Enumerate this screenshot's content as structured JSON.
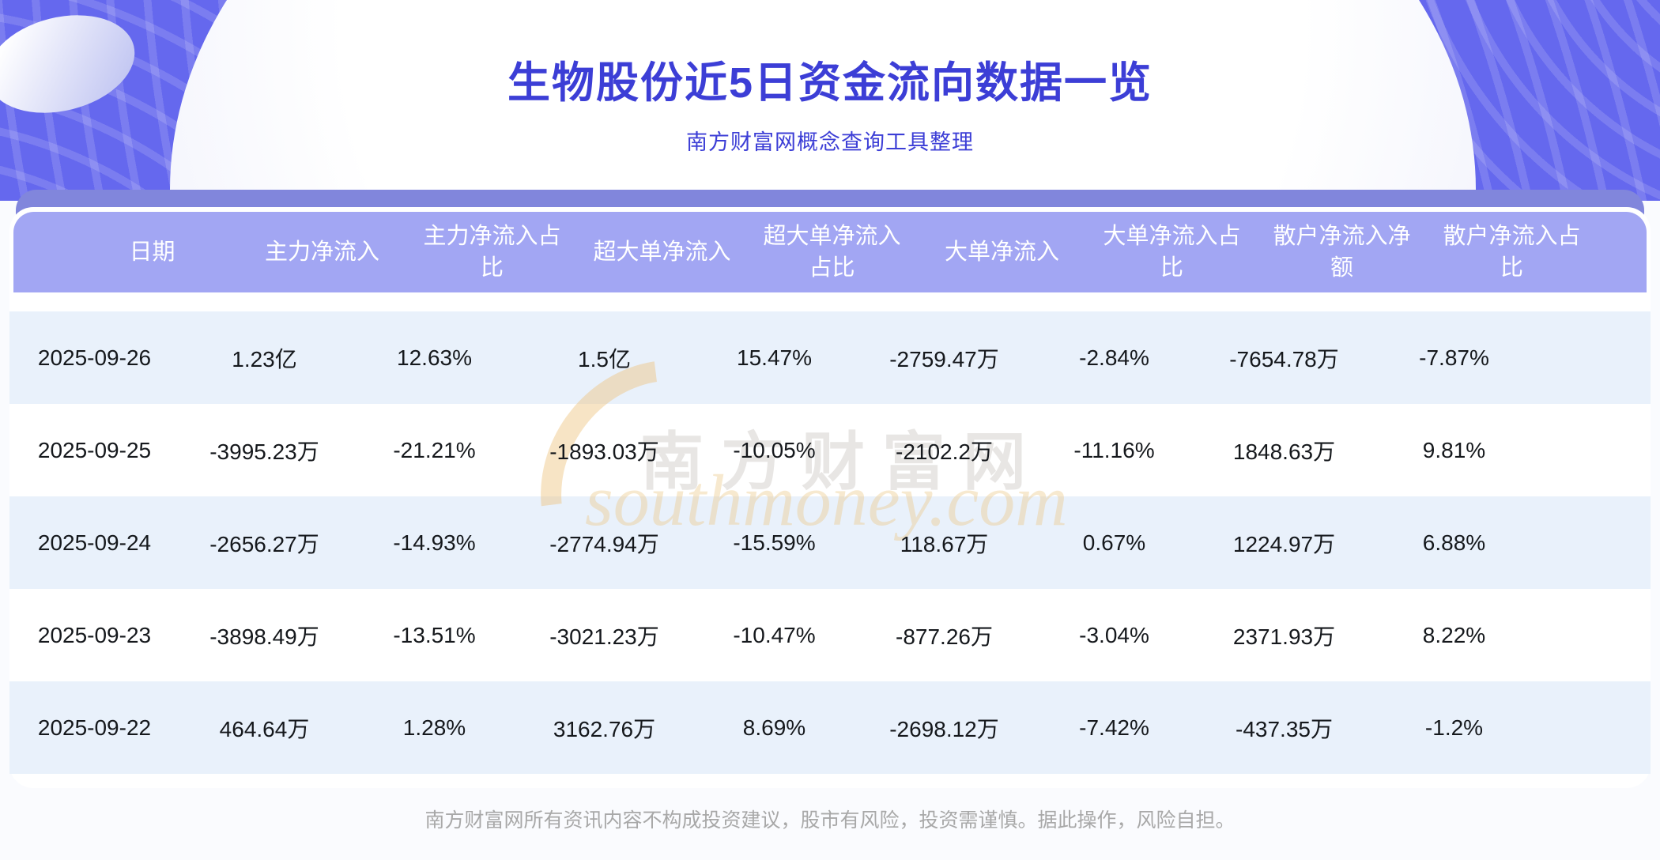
{
  "title": "生物股份近5日资金流向数据一览",
  "subtitle": "南方财富网概念查询工具整理",
  "watermark": {
    "cn": "南方财富网",
    "en": "southmoney.com"
  },
  "footer": "南方财富网所有资讯内容不构成投资建议，股市有风险，投资需谨慎。据此操作，风险自担。",
  "colors": {
    "banner": "#6568ee",
    "band": "#8186dc",
    "header_bg": "#a2a6f3",
    "stripe": "#e9f1fb",
    "title_text": "#3c3ed6",
    "header_text": "#ffffff",
    "body_text": "#15181c",
    "watermark_tan": "#ebc786"
  },
  "chart_data": {
    "type": "table",
    "title": "生物股份近5日资金流向数据一览",
    "columns": [
      "日期",
      "主力净流入",
      "主力净流入占比",
      "超大单净流入",
      "超大单净流入占比",
      "大单净流入",
      "大单净流入占比",
      "散户净流入净额",
      "散户净流入占比"
    ],
    "rows": [
      [
        "2025-09-26",
        "1.23亿",
        "12.63%",
        "1.5亿",
        "15.47%",
        "-2759.47万",
        "-2.84%",
        "-7654.78万",
        "-7.87%"
      ],
      [
        "2025-09-25",
        "-3995.23万",
        "-21.21%",
        "-1893.03万",
        "-10.05%",
        "-2102.2万",
        "-11.16%",
        "1848.63万",
        "9.81%"
      ],
      [
        "2025-09-24",
        "-2656.27万",
        "-14.93%",
        "-2774.94万",
        "-15.59%",
        "118.67万",
        "0.67%",
        "1224.97万",
        "6.88%"
      ],
      [
        "2025-09-23",
        "-3898.49万",
        "-13.51%",
        "-3021.23万",
        "-10.47%",
        "-877.26万",
        "-3.04%",
        "2371.93万",
        "8.22%"
      ],
      [
        "2025-09-22",
        "464.64万",
        "1.28%",
        "3162.76万",
        "8.69%",
        "-2698.12万",
        "-7.42%",
        "-437.35万",
        "-1.2%"
      ]
    ]
  }
}
